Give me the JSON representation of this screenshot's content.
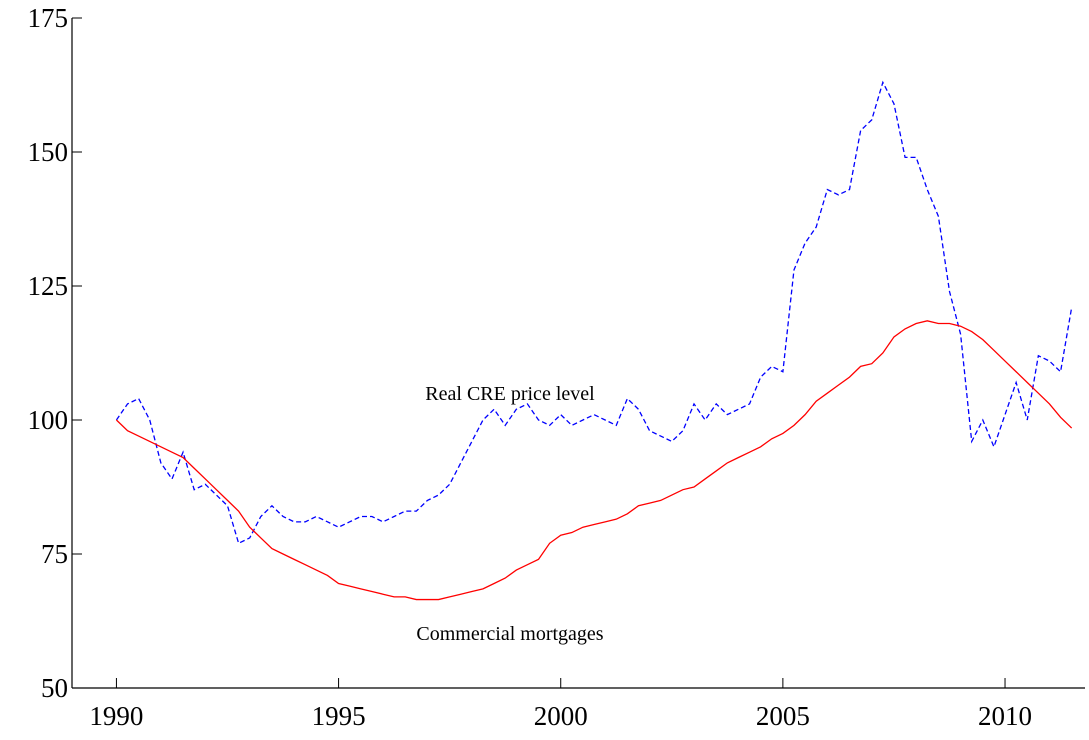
{
  "chart_data": {
    "type": "line",
    "x": [
      1990,
      1990.25,
      1990.5,
      1990.75,
      1991,
      1991.25,
      1991.5,
      1991.75,
      1992,
      1992.25,
      1992.5,
      1992.75,
      1993,
      1993.25,
      1993.5,
      1993.75,
      1994,
      1994.25,
      1994.5,
      1994.75,
      1995,
      1995.25,
      1995.5,
      1995.75,
      1996,
      1996.25,
      1996.5,
      1996.75,
      1997,
      1997.25,
      1997.5,
      1997.75,
      1998,
      1998.25,
      1998.5,
      1998.75,
      1999,
      1999.25,
      1999.5,
      1999.75,
      2000,
      2000.25,
      2000.5,
      2000.75,
      2001,
      2001.25,
      2001.5,
      2001.75,
      2002,
      2002.25,
      2002.5,
      2002.75,
      2003,
      2003.25,
      2003.5,
      2003.75,
      2004,
      2004.25,
      2004.5,
      2004.75,
      2005,
      2005.25,
      2005.5,
      2005.75,
      2006,
      2006.25,
      2006.5,
      2006.75,
      2007,
      2007.25,
      2007.5,
      2007.75,
      2008,
      2008.25,
      2008.5,
      2008.75,
      2009,
      2009.25,
      2009.5,
      2009.75,
      2010,
      2010.25,
      2010.5,
      2010.75,
      2011,
      2011.25,
      2011.5
    ],
    "series": [
      {
        "name": "Real CRE price level",
        "color": "#0000ff",
        "dashed": true,
        "values": [
          100,
          103,
          104,
          100,
          92,
          89,
          94,
          87,
          88,
          86,
          84,
          77,
          78,
          82,
          84,
          82,
          81,
          81,
          82,
          81,
          80,
          81,
          82,
          82,
          81,
          82,
          83,
          83,
          85,
          86,
          88,
          92,
          96,
          100,
          102,
          99,
          102,
          103,
          100,
          99,
          101,
          99,
          100,
          101,
          100,
          99,
          104,
          102,
          98,
          97,
          96,
          98,
          103,
          100,
          103,
          101,
          102,
          103,
          108,
          110,
          109,
          128,
          133,
          136,
          143,
          142,
          143,
          154,
          156,
          163,
          159,
          149,
          149,
          143,
          138,
          124,
          116,
          96,
          100,
          95,
          101,
          107,
          100,
          112,
          111,
          109,
          121
        ]
      },
      {
        "name": "Commercial mortgages",
        "color": "#ff0000",
        "dashed": false,
        "values": [
          100,
          98,
          97,
          96,
          95,
          94,
          93,
          91,
          89,
          87,
          85,
          83,
          80,
          78,
          76,
          75,
          74,
          73,
          72,
          71,
          69.5,
          69,
          68.5,
          68,
          67.5,
          67,
          67,
          66.5,
          66.5,
          66.5,
          67,
          67.5,
          68,
          68.5,
          69.5,
          70.5,
          72,
          73,
          74,
          77,
          78.5,
          79,
          80,
          80.5,
          81,
          81.5,
          82.5,
          84,
          84.5,
          85,
          86,
          87,
          87.5,
          89,
          90.5,
          92,
          93,
          94,
          95,
          96.5,
          97.5,
          99,
          101,
          103.5,
          105,
          106.5,
          108,
          110,
          110.5,
          112.5,
          115.5,
          117,
          118,
          118.5,
          118,
          118,
          117.5,
          116.5,
          115,
          113,
          111,
          109,
          107,
          105,
          103,
          100.5,
          98.5
        ]
      }
    ],
    "xlim": [
      1989,
      2011.8
    ],
    "xticks": [
      1990,
      1995,
      2000,
      2005,
      2010
    ],
    "ylim": [
      50,
      175
    ],
    "yticks": [
      50,
      75,
      100,
      125,
      150,
      175
    ],
    "grid": false
  }
}
